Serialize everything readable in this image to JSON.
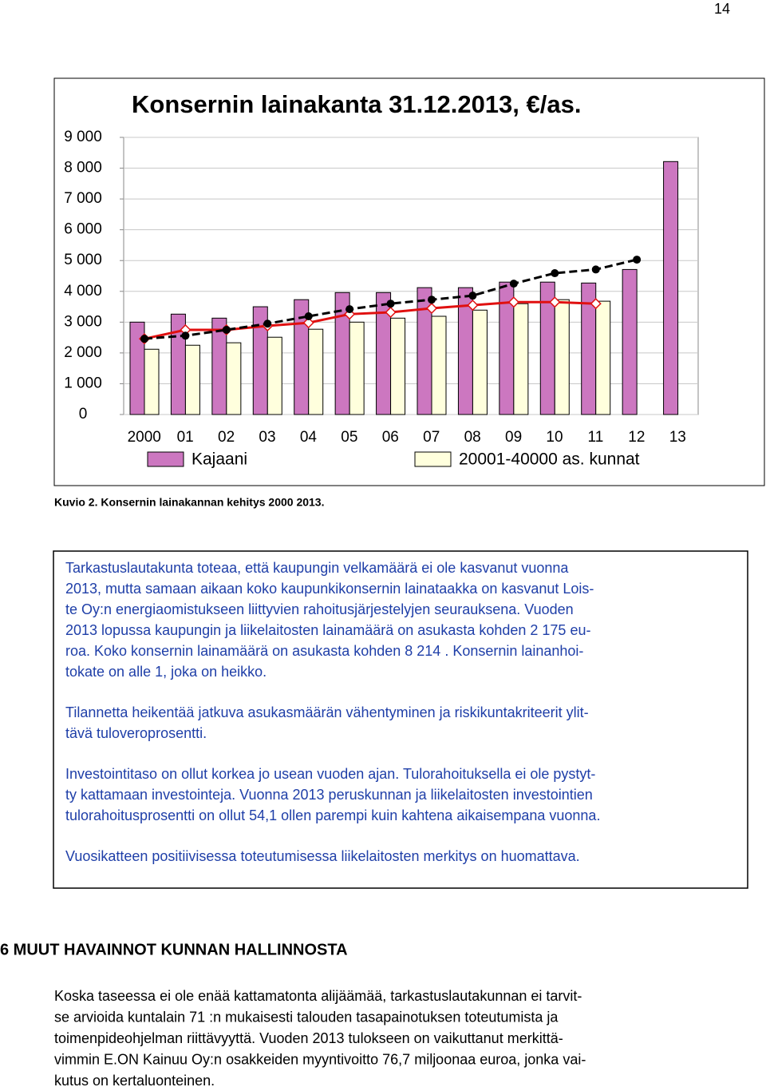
{
  "page_number": "14",
  "chart_data": {
    "type": "bar",
    "title": "Konsernin lainakanta 31.12.2013, €/as.",
    "categories": [
      "2000",
      "01",
      "02",
      "03",
      "04",
      "05",
      "06",
      "07",
      "08",
      "09",
      "10",
      "11",
      "12",
      "13"
    ],
    "series": [
      {
        "name": "Kajaani",
        "color": "#cc77c0",
        "values": [
          3000,
          3260,
          3130,
          3500,
          3730,
          3960,
          3960,
          4120,
          4120,
          4300,
          4300,
          4270,
          4710,
          8214
        ]
      },
      {
        "name": "20001-40000 as. kunnat",
        "color": "#ffffdd",
        "values": [
          2120,
          2250,
          2330,
          2510,
          2770,
          3000,
          3130,
          3190,
          3390,
          3600,
          3730,
          3680,
          null,
          null
        ]
      },
      {
        "type": "line",
        "color": "#e01010",
        "marker": "diamond",
        "values": [
          2460,
          2750,
          2750,
          2880,
          2980,
          3260,
          3320,
          3450,
          3550,
          3650,
          3650,
          3600,
          null,
          null
        ]
      },
      {
        "type": "line",
        "color": "#000000",
        "marker": "circle",
        "dashed": true,
        "values": [
          2460,
          2560,
          2750,
          2950,
          3190,
          3420,
          3600,
          3730,
          3860,
          4250,
          4590,
          4710,
          5030,
          null
        ]
      }
    ],
    "ylim": [
      0,
      9000
    ],
    "yticks": [
      {
        "value": 0,
        "label": "0"
      },
      {
        "value": 1000,
        "label": "1 000"
      },
      {
        "value": 2000,
        "label": "2 000"
      },
      {
        "value": 3000,
        "label": "3 000"
      },
      {
        "value": 4000,
        "label": "4 000"
      },
      {
        "value": 5000,
        "label": "5 000"
      },
      {
        "value": 6000,
        "label": "6 000"
      },
      {
        "value": 7000,
        "label": "7 000"
      },
      {
        "value": 8000,
        "label": "8 000"
      },
      {
        "value": 9000,
        "label": "9 000"
      }
    ],
    "grid": true
  },
  "caption": "Kuvio 2. Konsernin lainakannan kehitys 2000 2013.",
  "box": {
    "paragraphs": [
      [
        "Tarkastuslautakunta toteaa, että kaupungin velkamäärä ei ole kasvanut vuonna",
        "2013, mutta samaan aikaan koko kaupunkikonsernin lainataakka on kasvanut Lois-",
        "te Oy:n energiaomistukseen liittyvien rahoitusjärjestelyjen seurauksena. Vuoden",
        "2013 lopussa kaupungin ja liikelaitosten lainamäärä on asukasta kohden 2 175 eu-",
        "roa. Koko konsernin lainamäärä on asukasta kohden 8 214 . Konsernin lainanhoi-",
        "tokate on alle 1, joka on heikko."
      ],
      [
        "Tilannetta heikentää jatkuva asukasmäärän vähentyminen ja riskikuntakriteerit ylit-",
        "tävä tuloveroprosentti."
      ],
      [
        "Investointitaso on ollut korkea jo usean vuoden ajan. Tulorahoituksella ei ole pystyt-",
        "ty kattamaan investointeja. Vuonna 2013 peruskunnan ja liikelaitosten investointien",
        "tulorahoitusprosentti on ollut 54,1 ollen parempi kuin kahtena aikaisempana vuonna."
      ],
      [
        "Vuosikatteen positiivisessa toteutumisessa liikelaitosten merkitys on huomattava."
      ]
    ]
  },
  "section": {
    "heading": "6 MUUT HAVAINNOT KUNNAN HALLINNOSTA",
    "lines": [
      "Koska taseessa ei ole enää kattamatonta alijäämää, tarkastuslautakunnan ei tarvit-",
      "se arvioida kuntalain 71 :n mukaisesti talouden tasapainotuksen toteutumista ja",
      "toimenpideohjelman riittävyyttä. Vuoden 2013 tulokseen on vaikuttanut merkittä-",
      "vimmin E.ON Kainuu Oy:n osakkeiden myyntivoitto 76,7 miljoonaa euroa, jonka vai-",
      "kutus on kertaluonteinen."
    ]
  }
}
